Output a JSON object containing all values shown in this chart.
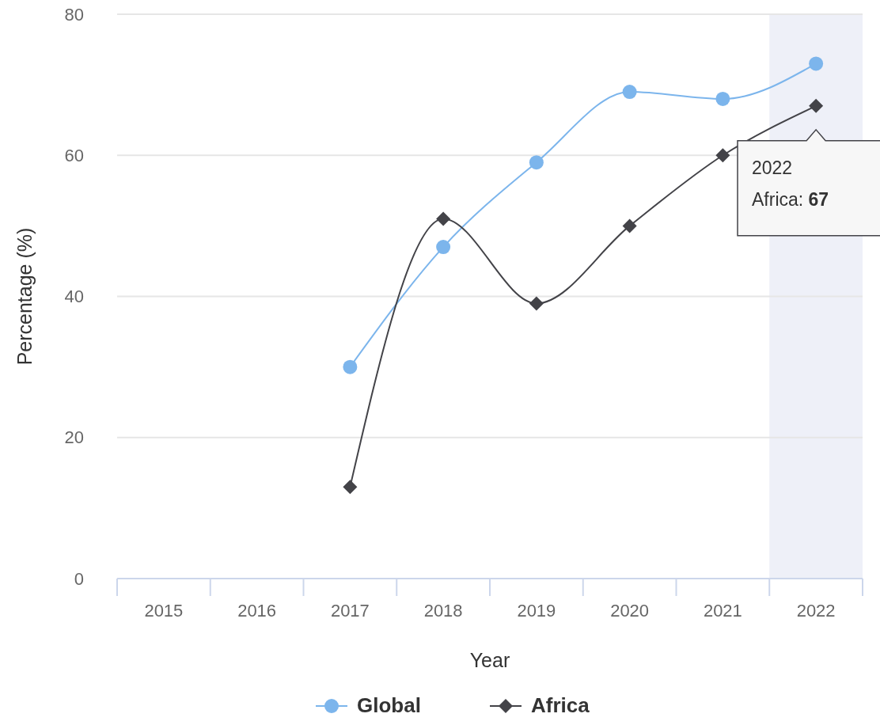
{
  "chart_data": {
    "type": "line",
    "xlabel": "Year",
    "ylabel": "Percentage (%)",
    "categories": [
      "2015",
      "2016",
      "2017",
      "2018",
      "2019",
      "2020",
      "2021",
      "2022"
    ],
    "series": [
      {
        "name": "Global",
        "color": "#7cb5ec",
        "marker": "circle",
        "values": [
          null,
          null,
          30,
          47,
          59,
          69,
          68,
          73
        ]
      },
      {
        "name": "Africa",
        "color": "#434348",
        "marker": "diamond",
        "values": [
          null,
          null,
          13,
          51,
          39,
          50,
          60,
          67
        ]
      }
    ],
    "ylim": [
      0,
      80
    ],
    "yticks": [
      0,
      20,
      40,
      60,
      80
    ],
    "grid": "y",
    "legend": "bottom",
    "bands": [
      {
        "axis": "x",
        "from": "2022",
        "to": "2022",
        "color": "#eef0f8"
      }
    ],
    "annotations": [
      {
        "text": "2022\nAfrica: 67",
        "x": "2022",
        "y": 67
      }
    ]
  }
}
